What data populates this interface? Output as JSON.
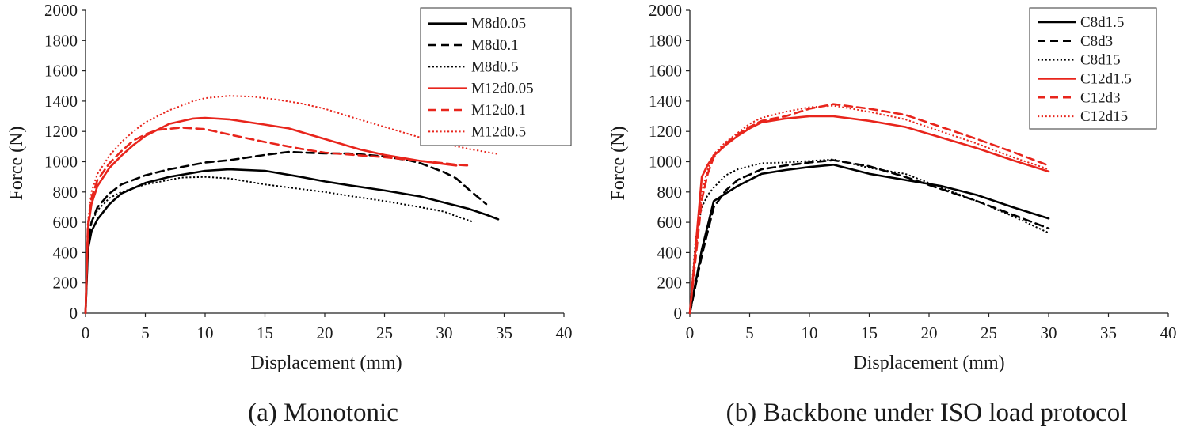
{
  "chart_data": [
    {
      "type": "line",
      "caption": "(a) Monotonic",
      "xlabel": "Displacement (mm)",
      "ylabel": "Force (N)",
      "xlim": [
        0,
        40
      ],
      "ylim": [
        0,
        2000
      ],
      "xticks": [
        "0",
        "5",
        "10",
        "15",
        "20",
        "25",
        "30",
        "35",
        "40"
      ],
      "yticks": [
        "0",
        "200",
        "400",
        "600",
        "800",
        "1000",
        "1200",
        "1400",
        "1600",
        "1800",
        "2000"
      ],
      "legend_position": "top-right",
      "series": [
        {
          "name": "M8d0.05",
          "color": "#000000",
          "dash": "solid",
          "x": [
            0,
            0.2,
            0.5,
            1,
            2,
            3,
            5,
            7,
            10,
            12,
            15,
            18,
            20,
            22,
            25,
            28,
            30,
            32,
            33.5,
            34.5
          ],
          "y": [
            0,
            420,
            540,
            620,
            720,
            790,
            860,
            900,
            940,
            950,
            940,
            900,
            870,
            845,
            810,
            770,
            730,
            690,
            650,
            620
          ]
        },
        {
          "name": "M8d0.1",
          "color": "#000000",
          "dash": "dashed",
          "x": [
            0,
            0.2,
            0.5,
            1,
            2,
            3,
            5,
            7,
            10,
            12,
            15,
            17,
            20,
            22,
            25,
            27,
            28,
            30,
            31,
            32,
            33.5
          ],
          "y": [
            0,
            460,
            600,
            700,
            790,
            850,
            910,
            950,
            995,
            1010,
            1045,
            1065,
            1055,
            1055,
            1035,
            1010,
            990,
            930,
            890,
            820,
            720
          ]
        },
        {
          "name": "M8d0.5",
          "color": "#000000",
          "dash": "dotted",
          "x": [
            0,
            0.2,
            0.5,
            1,
            2,
            3,
            5,
            7,
            8,
            10,
            12,
            15,
            18,
            20,
            22,
            25,
            28,
            30,
            31,
            32.5
          ],
          "y": [
            0,
            500,
            600,
            680,
            760,
            800,
            850,
            880,
            895,
            900,
            890,
            850,
            820,
            800,
            775,
            740,
            700,
            670,
            640,
            600
          ]
        },
        {
          "name": "M12d0.05",
          "color": "#e8251c",
          "dash": "solid",
          "x": [
            0,
            0.2,
            0.5,
            1,
            2,
            3,
            4,
            5,
            7,
            9,
            10,
            12,
            15,
            17,
            20,
            23,
            25,
            28,
            30,
            31
          ],
          "y": [
            0,
            560,
            720,
            840,
            960,
            1040,
            1110,
            1170,
            1250,
            1285,
            1290,
            1280,
            1245,
            1220,
            1150,
            1080,
            1045,
            1005,
            985,
            975
          ]
        },
        {
          "name": "M12d0.1",
          "color": "#e8251c",
          "dash": "dashed",
          "x": [
            0,
            0.2,
            0.5,
            1,
            2,
            3,
            4,
            5,
            6,
            8,
            10,
            12,
            15,
            18,
            20,
            25,
            28,
            30,
            31,
            32
          ],
          "y": [
            0,
            580,
            760,
            880,
            990,
            1070,
            1140,
            1180,
            1210,
            1225,
            1215,
            1180,
            1130,
            1085,
            1060,
            1030,
            1005,
            990,
            980,
            975
          ]
        },
        {
          "name": "M12d0.5",
          "color": "#e8251c",
          "dash": "dotted",
          "x": [
            0,
            0.2,
            0.5,
            1,
            2,
            3,
            4,
            5,
            7,
            9,
            10,
            12,
            14,
            16,
            18,
            20,
            22,
            25,
            28,
            30,
            32,
            34.5
          ],
          "y": [
            0,
            600,
            800,
            920,
            1040,
            1130,
            1200,
            1260,
            1340,
            1400,
            1420,
            1435,
            1430,
            1410,
            1385,
            1350,
            1300,
            1230,
            1160,
            1120,
            1085,
            1050
          ]
        }
      ]
    },
    {
      "type": "line",
      "caption": "(b) Backbone under ISO load protocol",
      "xlabel": "Displacement (mm)",
      "ylabel": "Force (N)",
      "xlim": [
        0,
        40
      ],
      "ylim": [
        0,
        2000
      ],
      "xticks": [
        "0",
        "5",
        "10",
        "15",
        "20",
        "25",
        "30",
        "35",
        "40"
      ],
      "yticks": [
        "0",
        "200",
        "400",
        "600",
        "800",
        "1000",
        "1200",
        "1400",
        "1600",
        "1800",
        "2000"
      ],
      "legend_position": "top-right",
      "series": [
        {
          "name": "C8d1.5",
          "color": "#000000",
          "dash": "solid",
          "x": [
            0,
            1,
            2,
            3,
            4,
            6,
            8,
            10,
            12,
            15,
            18,
            21,
            24,
            27,
            30
          ],
          "y": [
            0,
            420,
            740,
            790,
            840,
            920,
            945,
            965,
            980,
            920,
            880,
            840,
            780,
            700,
            625
          ]
        },
        {
          "name": "C8d3",
          "color": "#000000",
          "dash": "dashed",
          "x": [
            0,
            1,
            2,
            3,
            4,
            6,
            8,
            10,
            12,
            15,
            18,
            21,
            24,
            27,
            30
          ],
          "y": [
            0,
            380,
            700,
            810,
            880,
            950,
            975,
            995,
            1010,
            970,
            900,
            820,
            740,
            650,
            560
          ]
        },
        {
          "name": "C8d15",
          "color": "#000000",
          "dash": "dotted",
          "x": [
            0,
            0.5,
            1,
            1.5,
            2,
            3,
            4,
            6,
            8,
            10,
            12,
            15,
            18,
            21,
            24,
            27,
            30
          ],
          "y": [
            0,
            500,
            700,
            780,
            830,
            910,
            950,
            990,
            995,
            1005,
            1015,
            960,
            920,
            830,
            740,
            640,
            530
          ]
        },
        {
          "name": "C12d1.5",
          "color": "#e8251c",
          "dash": "solid",
          "x": [
            0,
            1,
            1.5,
            2,
            3,
            4,
            5,
            6,
            8,
            10,
            12,
            15,
            18,
            21,
            24,
            27,
            30
          ],
          "y": [
            0,
            900,
            980,
            1040,
            1110,
            1170,
            1220,
            1260,
            1285,
            1300,
            1300,
            1270,
            1230,
            1160,
            1090,
            1010,
            935
          ]
        },
        {
          "name": "C12d3",
          "color": "#e8251c",
          "dash": "dashed",
          "x": [
            0,
            1,
            1.5,
            2,
            3,
            4,
            5,
            6,
            8,
            10,
            12,
            15,
            18,
            21,
            24,
            27,
            30
          ],
          "y": [
            0,
            750,
            920,
            1030,
            1120,
            1180,
            1230,
            1270,
            1300,
            1350,
            1380,
            1350,
            1310,
            1230,
            1150,
            1065,
            975
          ]
        },
        {
          "name": "C12d15",
          "color": "#e8251c",
          "dash": "dotted",
          "x": [
            0,
            1,
            1.5,
            2,
            3,
            4,
            5,
            6,
            8,
            10,
            12,
            15,
            18,
            21,
            24,
            27,
            30
          ],
          "y": [
            0,
            800,
            950,
            1050,
            1130,
            1190,
            1250,
            1290,
            1330,
            1360,
            1370,
            1330,
            1280,
            1200,
            1120,
            1030,
            950
          ]
        }
      ]
    }
  ]
}
